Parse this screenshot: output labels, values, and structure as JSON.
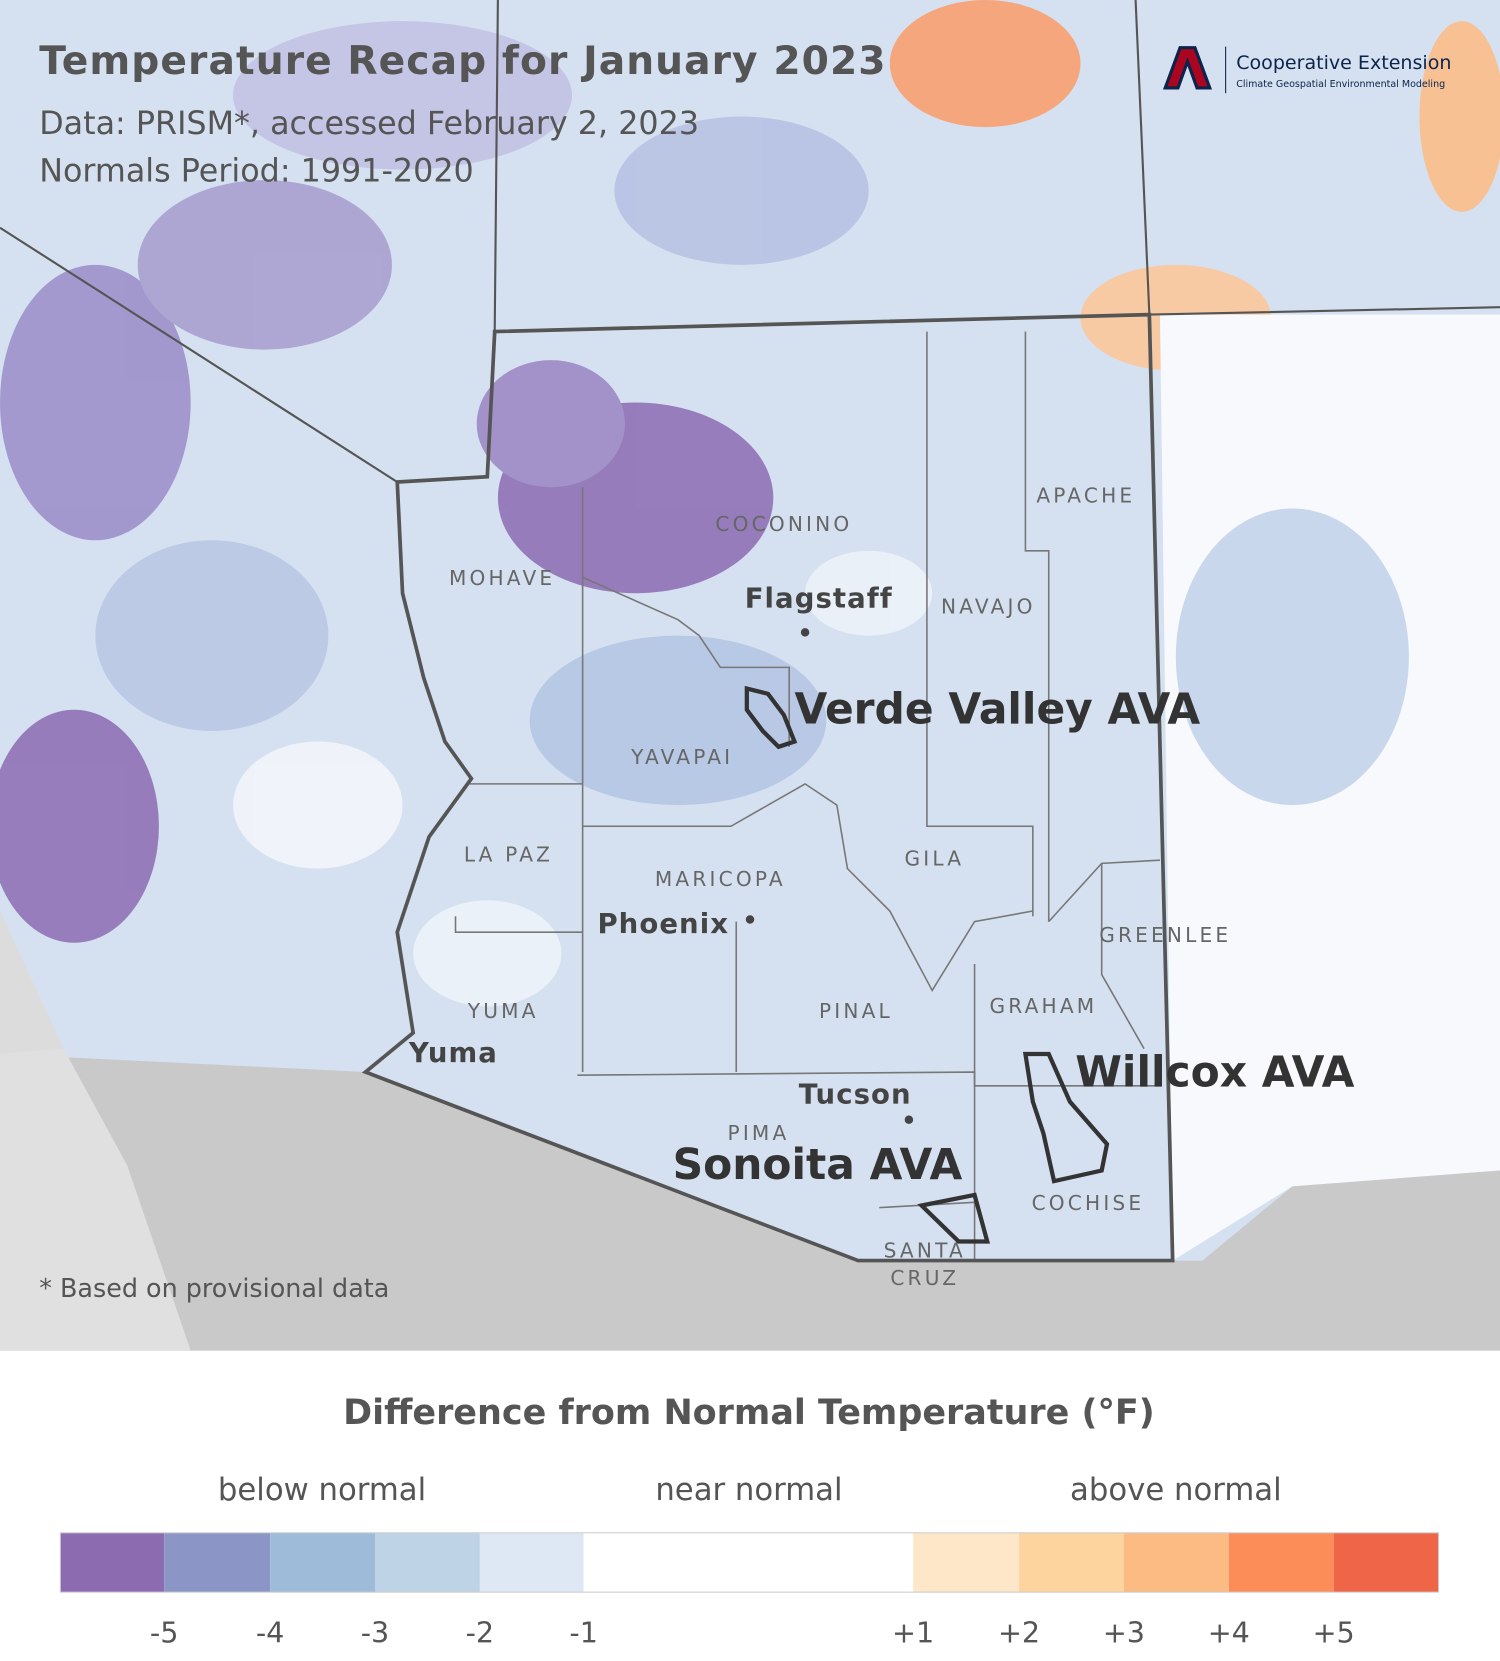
{
  "header": {
    "title": "Temperature Recap for January 2023",
    "source": "Data: PRISM*, accessed February 2, 2023",
    "normals": "Normals Period: 1991-2020"
  },
  "logo": {
    "name": "Cooperative Extension",
    "subtitle": "Climate Geospatial Environmental Modeling"
  },
  "map": {
    "counties": [
      "COCONINO",
      "APACHE",
      "NAVAJO",
      "MOHAVE",
      "YAVAPAI",
      "LA PAZ",
      "MARICOPA",
      "GILA",
      "GREENLEE",
      "GRAHAM",
      "YUMA",
      "PINAL",
      "PIMA",
      "COCHISE",
      "SANTA",
      "CRUZ"
    ],
    "cities": [
      "Flagstaff",
      "Phoenix",
      "Yuma",
      "Tucson"
    ],
    "avas": [
      "Verde Valley AVA",
      "Willcox AVA",
      "Sonoita AVA"
    ],
    "footnote": "* Based on provisional data"
  },
  "legend": {
    "title": "Difference from Normal Temperature (°F)",
    "groups": [
      "below normal",
      "near normal",
      "above normal"
    ],
    "colors": [
      "#8c6bb1",
      "#8c96c6",
      "#9ebcda",
      "#bfd3e6",
      "#dde8f4",
      "#ffffff",
      "#fee6c8",
      "#fdd49e",
      "#fdbb84",
      "#fc8d59",
      "#ef6548"
    ],
    "ticks": [
      -5,
      -4,
      -3,
      -2,
      -1,
      {
        "value": 1,
        "label": "+1"
      },
      {
        "value": 2,
        "label": "+2"
      },
      {
        "value": 3,
        "label": "+3"
      },
      {
        "value": 4,
        "label": "+4"
      },
      {
        "value": 5,
        "label": "+5"
      }
    ]
  }
}
